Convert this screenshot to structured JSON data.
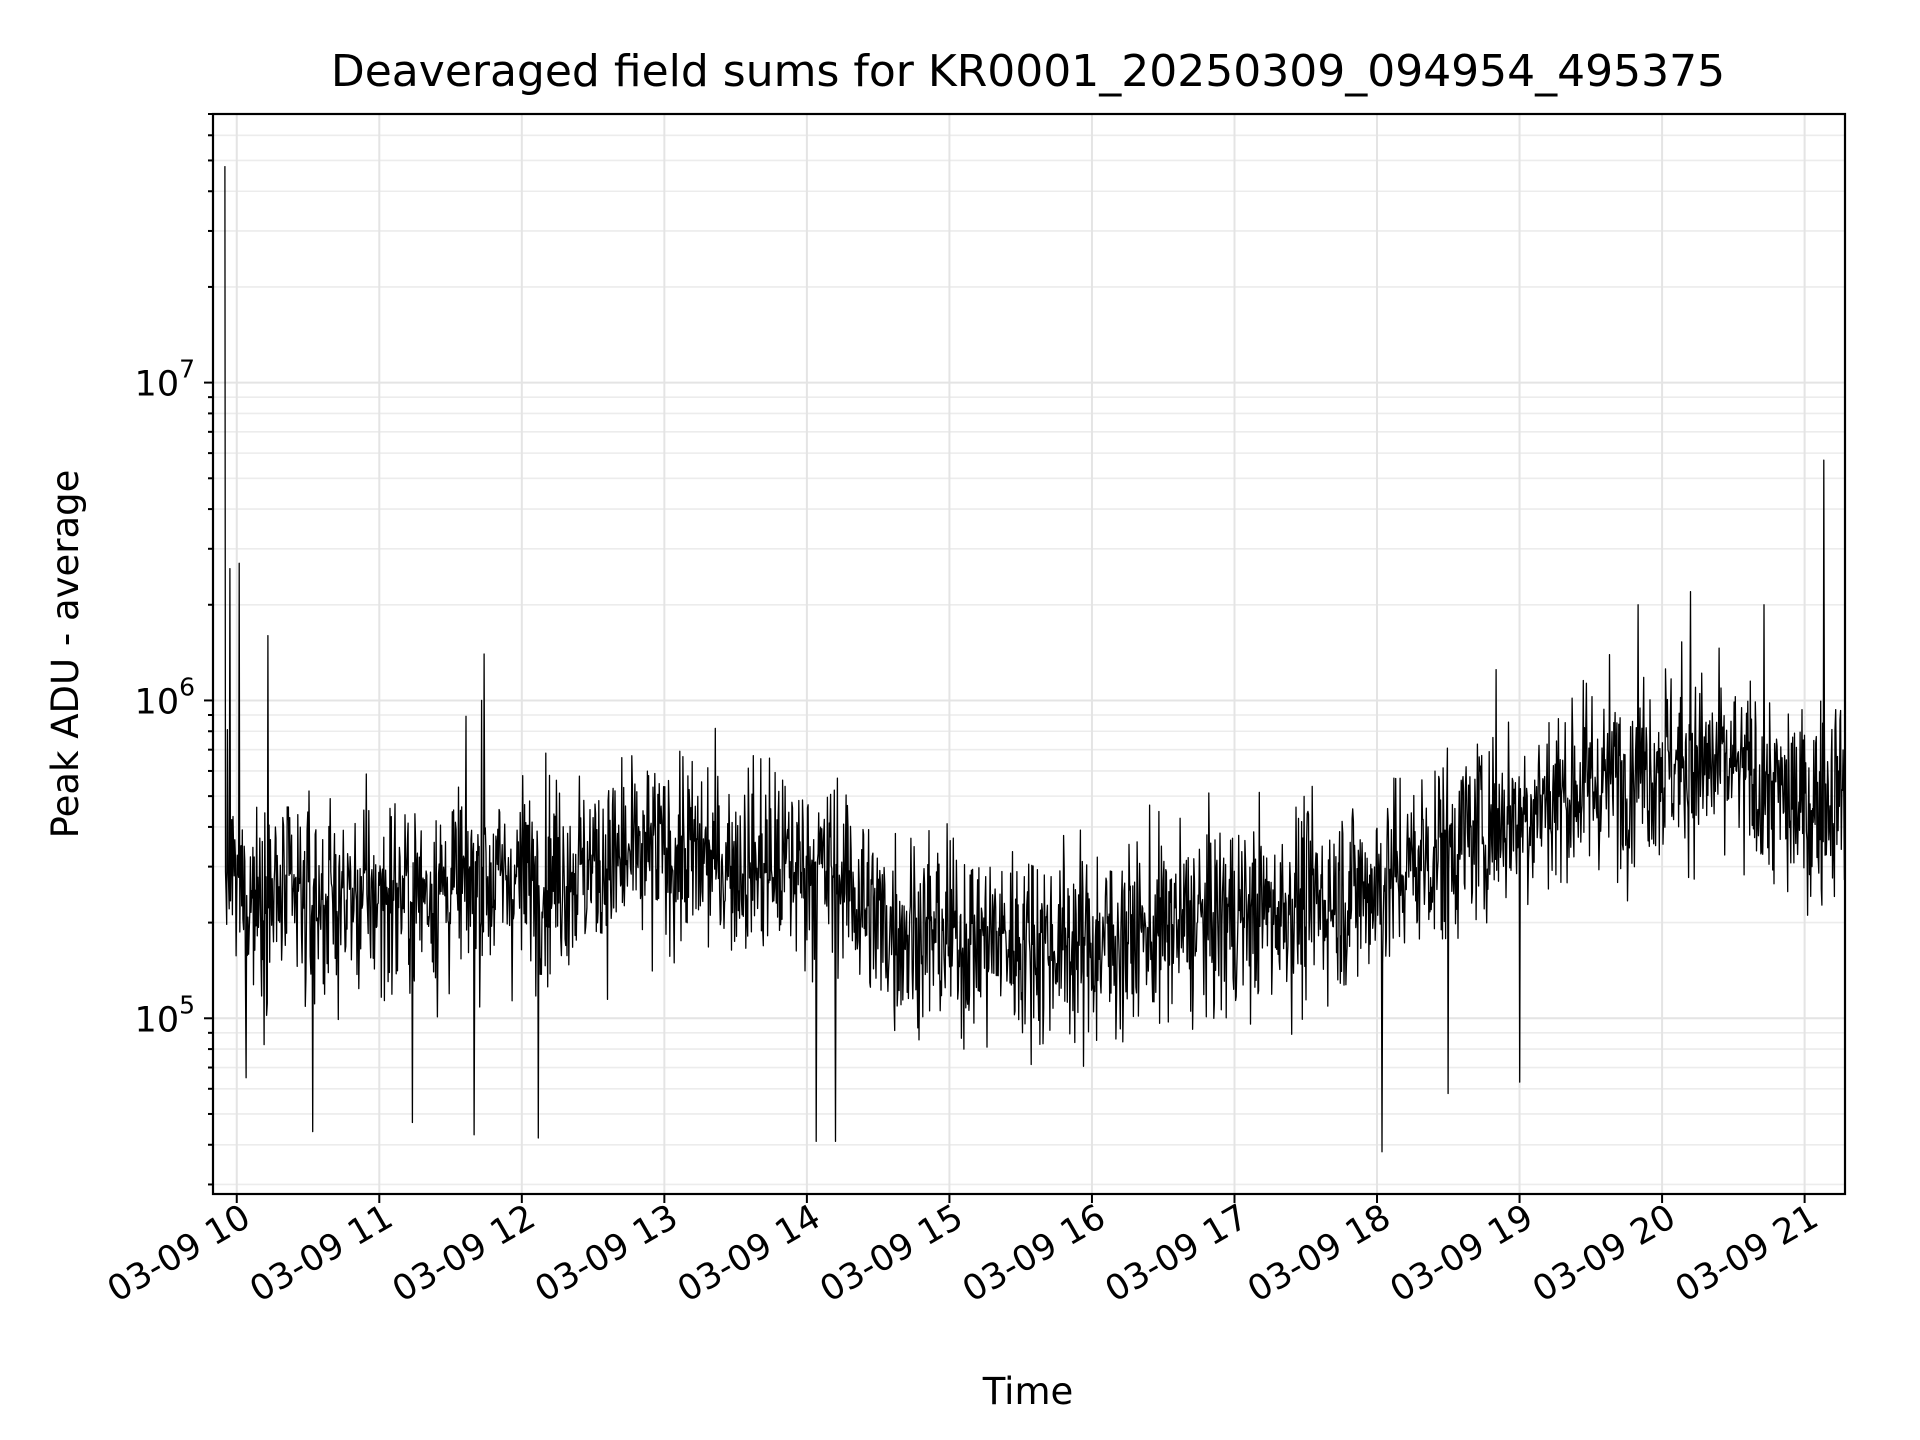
{
  "chart_data": {
    "type": "line",
    "title": "Deaveraged field sums for KR0001_20250309_094954_495375",
    "xlabel": "Time",
    "ylabel": "Peak ADU - average",
    "yscale": "log",
    "ylim": [
      28000,
      70000000
    ],
    "xlim": [
      "2025-03-09 09:50",
      "2025-03-09 21:17"
    ],
    "x_ticks": [
      "03-09 10",
      "03-09 11",
      "03-09 12",
      "03-09 13",
      "03-09 14",
      "03-09 15",
      "03-09 16",
      "03-09 17",
      "03-09 18",
      "03-09 19",
      "03-09 20",
      "03-09 21"
    ],
    "y_ticks": [
      {
        "base": "10",
        "exp": "5",
        "value": 100000
      },
      {
        "base": "10",
        "exp": "6",
        "value": 1000000
      },
      {
        "base": "10",
        "exp": "7",
        "value": 10000000
      }
    ],
    "grid": true,
    "line_color": "#000000",
    "series": [
      {
        "x": [
          "2025-03-09 09:50",
          "2025-03-09 10:00",
          "2025-03-09 10:30",
          "2025-03-09 11:00",
          "2025-03-09 11:30",
          "2025-03-09 12:00",
          "2025-03-09 12:30",
          "2025-03-09 13:00",
          "2025-03-09 13:30",
          "2025-03-09 14:00",
          "2025-03-09 14:15",
          "2025-03-09 14:30",
          "2025-03-09 15:00",
          "2025-03-09 15:30",
          "2025-03-09 16:00",
          "2025-03-09 16:30",
          "2025-03-09 17:00",
          "2025-03-09 17:30",
          "2025-03-09 18:00",
          "2025-03-09 18:30",
          "2025-03-09 19:00",
          "2025-03-09 19:30",
          "2025-03-09 20:00",
          "2025-03-09 20:30",
          "2025-03-09 21:00",
          "2025-03-09 21:17"
        ],
        "y": [
          400000,
          250000,
          230000,
          240000,
          260000,
          280000,
          300000,
          330000,
          310000,
          300000,
          280000,
          200000,
          180000,
          175000,
          170000,
          190000,
          210000,
          230000,
          260000,
          350000,
          450000,
          550000,
          650000,
          600000,
          450000,
          550000
        ]
      }
    ],
    "spikes": [
      {
        "x": "2025-03-09 09:55",
        "y": 48000000
      },
      {
        "x": "2025-03-09 09:57",
        "y": 2600000
      },
      {
        "x": "2025-03-09 10:01",
        "y": 2700000
      },
      {
        "x": "2025-03-09 10:13",
        "y": 1600000
      },
      {
        "x": "2025-03-09 11:44",
        "y": 1400000
      },
      {
        "x": "2025-03-09 11:43",
        "y": 1000000
      },
      {
        "x": "2025-03-09 18:50",
        "y": 1250000
      },
      {
        "x": "2025-03-09 19:50",
        "y": 2000000
      },
      {
        "x": "2025-03-09 20:12",
        "y": 2200000
      },
      {
        "x": "2025-03-09 20:43",
        "y": 2000000
      },
      {
        "x": "2025-03-09 21:08",
        "y": 5700000
      }
    ],
    "dips": [
      {
        "x": "2025-03-09 10:04",
        "y": 65000
      },
      {
        "x": "2025-03-09 10:32",
        "y": 44000
      },
      {
        "x": "2025-03-09 11:14",
        "y": 47000
      },
      {
        "x": "2025-03-09 11:40",
        "y": 43000
      },
      {
        "x": "2025-03-09 12:07",
        "y": 42000
      },
      {
        "x": "2025-03-09 14:04",
        "y": 41000
      },
      {
        "x": "2025-03-09 14:12",
        "y": 41000
      },
      {
        "x": "2025-03-09 18:02",
        "y": 38000
      },
      {
        "x": "2025-03-09 18:30",
        "y": 58000
      },
      {
        "x": "2025-03-09 19:00",
        "y": 63000
      }
    ]
  }
}
